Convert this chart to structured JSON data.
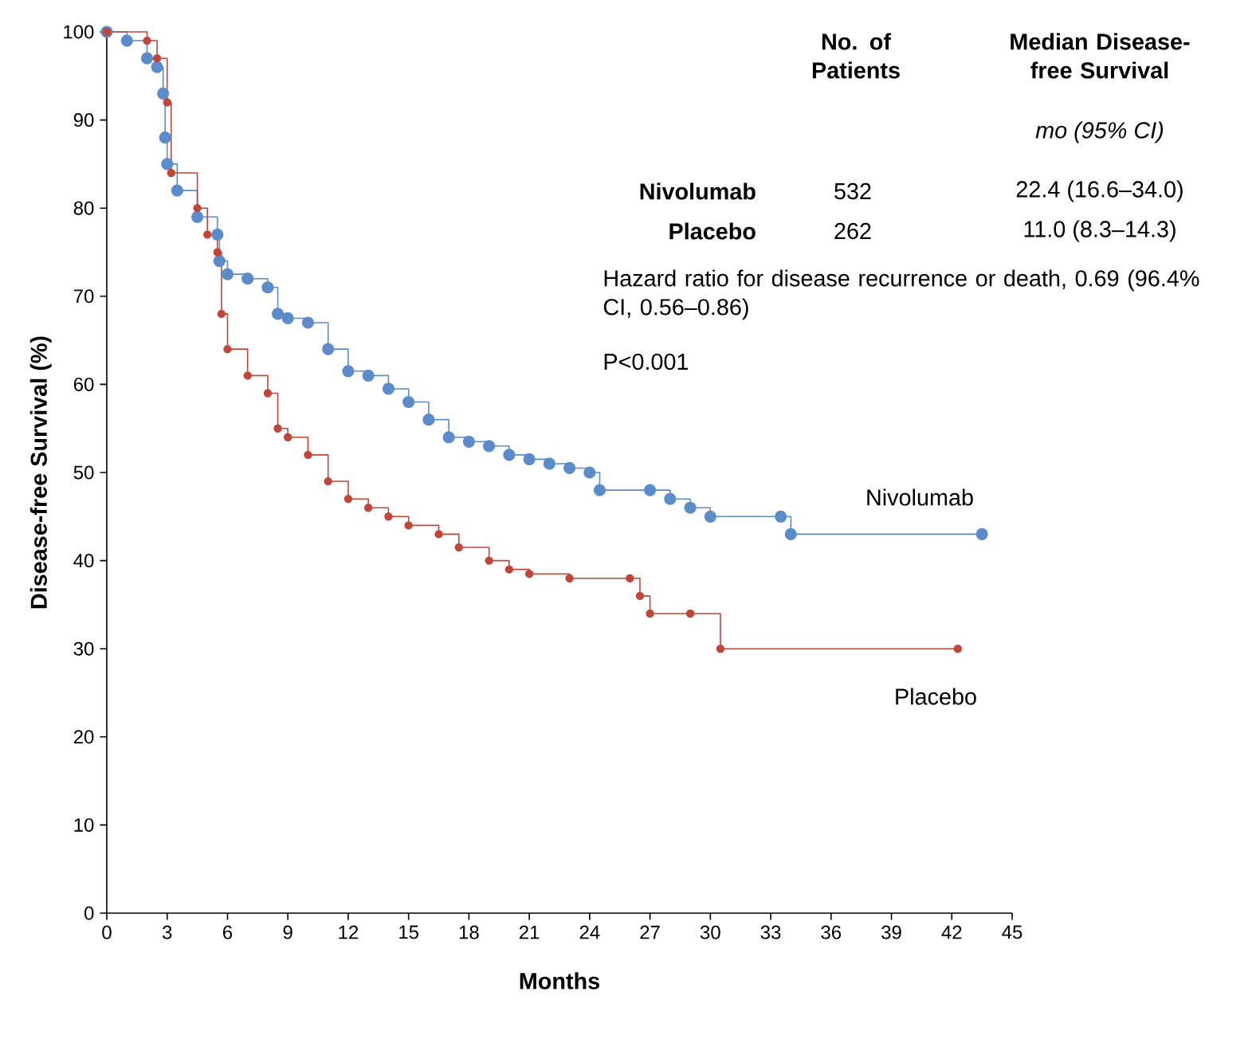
{
  "chart_data": {
    "type": "step",
    "xlabel": "Months",
    "ylabel": "Disease-free Survival (%)",
    "xlim": [
      0,
      45
    ],
    "ylim": [
      0,
      100
    ],
    "xticks": [
      0,
      3,
      6,
      9,
      12,
      15,
      18,
      21,
      24,
      27,
      30,
      33,
      36,
      39,
      42,
      45
    ],
    "yticks": [
      0,
      10,
      20,
      30,
      40,
      50,
      60,
      70,
      80,
      90,
      100
    ],
    "marker": "circle",
    "line_style": "solid",
    "series": [
      {
        "name": "Nivolumab",
        "color": "#5b8cc9",
        "x": [
          0,
          1,
          2,
          2.5,
          2.8,
          2.9,
          3,
          3.5,
          4.5,
          5.5,
          5.6,
          6,
          7,
          8,
          8.5,
          9,
          10,
          11,
          12,
          13,
          14,
          15,
          16,
          17,
          18,
          19,
          20,
          21,
          22,
          23,
          24,
          24.5,
          27,
          28,
          29,
          30,
          33.5,
          34,
          43.5
        ],
        "values": [
          100,
          99,
          97,
          96,
          93,
          88,
          85,
          82,
          79,
          77,
          74,
          72.5,
          72,
          71,
          68,
          67.5,
          67,
          64,
          61.5,
          61,
          59.5,
          58,
          56,
          54,
          53.5,
          53,
          52,
          51.5,
          51,
          50.5,
          50,
          48,
          48,
          47,
          46,
          45,
          45,
          43,
          43
        ]
      },
      {
        "name": "Placebo",
        "color": "#c0463a",
        "x": [
          0,
          2,
          2.5,
          3,
          3.2,
          4.5,
          5,
          5.5,
          5.7,
          6,
          7,
          8,
          8.5,
          9,
          10,
          11,
          12,
          13,
          14,
          15,
          16.5,
          17.5,
          19,
          20,
          21,
          23,
          26,
          26.5,
          27,
          29,
          30.5,
          42.3
        ],
        "values": [
          100,
          99,
          97,
          92,
          84,
          80,
          77,
          75,
          68,
          64,
          61,
          59,
          55,
          54,
          52,
          49,
          47,
          46,
          45,
          44,
          43,
          41.5,
          40,
          39,
          38.5,
          38,
          38,
          36,
          34,
          34,
          30,
          30
        ]
      }
    ],
    "annotations": [
      "No. of Patients",
      "Median Disease-free Survival",
      "mo (95% CI)",
      "532",
      "22.4 (16.6–34.0)",
      "262",
      "11.0 (8.3–14.3)",
      "Hazard ratio for disease recurrence or death, 0.69 (96.4% CI, 0.56–0.86)",
      "P<0.001"
    ]
  }
}
